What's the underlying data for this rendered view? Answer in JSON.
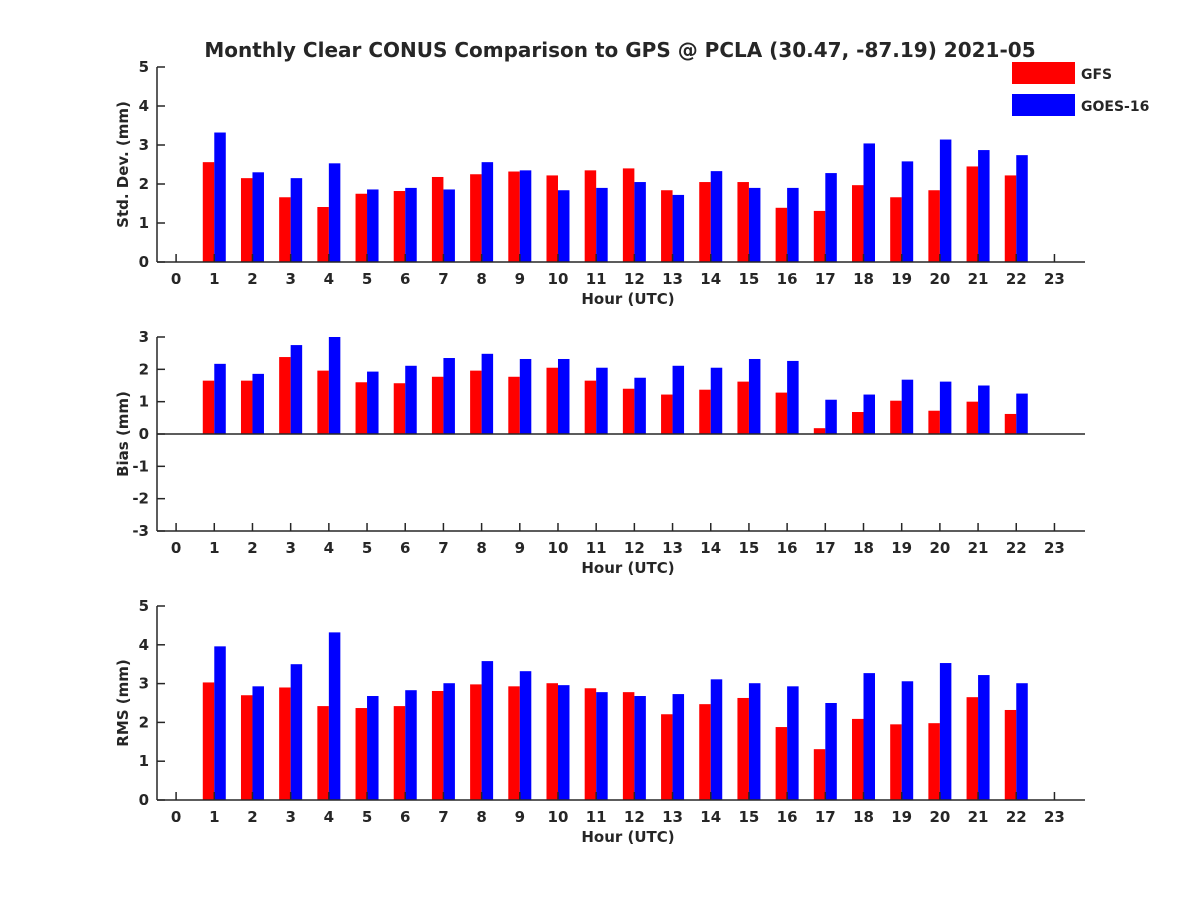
{
  "title": "Monthly Clear CONUS Comparison to GPS @ PCLA (30.47, -87.19) 2021-05",
  "legend": [
    {
      "name": "GFS",
      "color": "#ff0000"
    },
    {
      "name": "GOES-16",
      "color": "#0000ff"
    }
  ],
  "chart_data": [
    {
      "type": "bar",
      "xlabel": "Hour (UTC)",
      "ylabel": "Std. Dev. (mm)",
      "x": [
        1,
        2,
        3,
        4,
        5,
        6,
        7,
        8,
        9,
        10,
        11,
        12,
        13,
        14,
        15,
        16,
        17,
        18,
        19,
        20,
        21,
        22
      ],
      "xticks": [
        "0",
        "1",
        "2",
        "3",
        "4",
        "5",
        "6",
        "7",
        "8",
        "9",
        "10",
        "11",
        "12",
        "13",
        "14",
        "15",
        "16",
        "17",
        "18",
        "19",
        "20",
        "21",
        "22",
        "23"
      ],
      "yticks": [
        "0",
        "1",
        "2",
        "3",
        "4",
        "5"
      ],
      "xlim": [
        -0.5,
        23.8
      ],
      "ylim": [
        0,
        5
      ],
      "series": [
        {
          "name": "GFS",
          "color": "#ff0000",
          "values": [
            2.56,
            2.15,
            1.66,
            1.41,
            1.75,
            1.82,
            2.18,
            2.25,
            2.32,
            2.22,
            2.35,
            2.4,
            1.84,
            2.05,
            2.05,
            1.39,
            1.31,
            1.97,
            1.66,
            1.84,
            2.45,
            2.22
          ]
        },
        {
          "name": "GOES-16",
          "color": "#0000ff",
          "values": [
            3.32,
            2.3,
            2.15,
            2.53,
            1.86,
            1.9,
            1.86,
            2.56,
            2.35,
            1.84,
            1.9,
            2.05,
            1.72,
            2.33,
            1.9,
            1.9,
            2.28,
            3.04,
            2.58,
            3.14,
            2.87,
            2.74
          ]
        }
      ]
    },
    {
      "type": "bar",
      "xlabel": "Hour (UTC)",
      "ylabel": "Bias (mm)",
      "x": [
        1,
        2,
        3,
        4,
        5,
        6,
        7,
        8,
        9,
        10,
        11,
        12,
        13,
        14,
        15,
        16,
        17,
        18,
        19,
        20,
        21,
        22
      ],
      "xticks": [
        "0",
        "1",
        "2",
        "3",
        "4",
        "5",
        "6",
        "7",
        "8",
        "9",
        "10",
        "11",
        "12",
        "13",
        "14",
        "15",
        "16",
        "17",
        "18",
        "19",
        "20",
        "21",
        "22",
        "23"
      ],
      "yticks": [
        "-3",
        "-2",
        "-1",
        "0",
        "1",
        "2",
        "3"
      ],
      "xlim": [
        -0.5,
        23.8
      ],
      "ylim": [
        -3,
        3
      ],
      "series": [
        {
          "name": "GFS",
          "color": "#ff0000",
          "values": [
            1.65,
            1.65,
            2.38,
            1.96,
            1.6,
            1.57,
            1.77,
            1.96,
            1.77,
            2.05,
            1.65,
            1.4,
            1.22,
            1.37,
            1.62,
            1.28,
            0.18,
            0.68,
            1.03,
            0.72,
            1.0,
            0.62
          ]
        },
        {
          "name": "GOES-16",
          "color": "#0000ff",
          "values": [
            2.17,
            1.86,
            2.75,
            3.0,
            1.93,
            2.11,
            2.35,
            2.48,
            2.32,
            2.32,
            2.05,
            1.74,
            2.11,
            2.05,
            2.32,
            2.26,
            1.06,
            1.22,
            1.68,
            1.62,
            1.5,
            1.25
          ]
        }
      ]
    },
    {
      "type": "bar",
      "xlabel": "Hour (UTC)",
      "ylabel": "RMS (mm)",
      "x": [
        1,
        2,
        3,
        4,
        5,
        6,
        7,
        8,
        9,
        10,
        11,
        12,
        13,
        14,
        15,
        16,
        17,
        18,
        19,
        20,
        21,
        22
      ],
      "xticks": [
        "0",
        "1",
        "2",
        "3",
        "4",
        "5",
        "6",
        "7",
        "8",
        "9",
        "10",
        "11",
        "12",
        "13",
        "14",
        "15",
        "16",
        "17",
        "18",
        "19",
        "20",
        "21",
        "22",
        "23"
      ],
      "yticks": [
        "0",
        "1",
        "2",
        "3",
        "4",
        "5"
      ],
      "xlim": [
        -0.5,
        23.8
      ],
      "ylim": [
        0,
        5
      ],
      "series": [
        {
          "name": "GFS",
          "color": "#ff0000",
          "values": [
            3.03,
            2.7,
            2.9,
            2.42,
            2.37,
            2.42,
            2.81,
            2.98,
            2.93,
            3.01,
            2.88,
            2.78,
            2.21,
            2.47,
            2.63,
            1.88,
            1.31,
            2.09,
            1.95,
            1.98,
            2.65,
            2.32
          ]
        },
        {
          "name": "GOES-16",
          "color": "#0000ff",
          "values": [
            3.96,
            2.93,
            3.5,
            4.32,
            2.68,
            2.83,
            3.01,
            3.58,
            3.32,
            2.96,
            2.78,
            2.68,
            2.73,
            3.11,
            3.01,
            2.93,
            2.5,
            3.27,
            3.06,
            3.53,
            3.22,
            3.01
          ]
        }
      ]
    }
  ]
}
